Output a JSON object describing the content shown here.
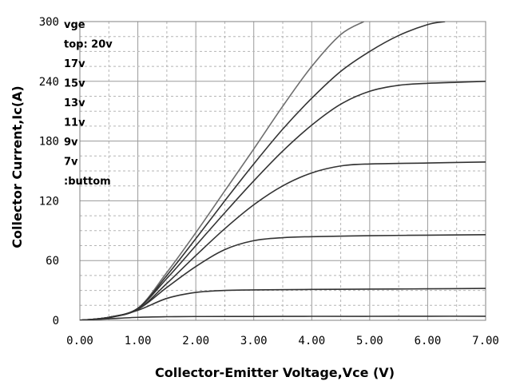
{
  "chart_data": {
    "type": "line",
    "title": "",
    "xlabel": "Collector-Emitter Voltage,Vce (V)",
    "ylabel": "Collector Current,Ic(A)",
    "xlim": [
      0,
      7
    ],
    "ylim": [
      0,
      300
    ],
    "x_ticks": [
      0,
      1,
      2,
      3,
      4,
      5,
      6,
      7
    ],
    "x_tick_labels": [
      "0.00",
      "1.00",
      "2.00",
      "3.00",
      "4.00",
      "5.00",
      "6.00",
      "7.00"
    ],
    "y_ticks": [
      0,
      60,
      120,
      180,
      240,
      300
    ],
    "y_tick_labels": [
      "0",
      "60",
      "120",
      "180",
      "240",
      "300"
    ],
    "grid": true,
    "legend_lines": [
      "vge",
      "top:      20v",
      "17v",
      "15v",
      "13v",
      "11v",
      "9v",
      "7v",
      ":buttom"
    ],
    "legend_placement": "top-left",
    "line_color": "#333333",
    "series": [
      {
        "x": [
          0,
          0.5,
          1.0,
          1.5,
          2.0,
          2.5,
          3.0,
          3.5,
          4.0,
          4.5,
          4.9
        ],
        "y": [
          0,
          3,
          12,
          48,
          88,
          130,
          172,
          215,
          255,
          287,
          300
        ]
      },
      {
        "x": [
          0,
          0.5,
          1.0,
          1.5,
          2.0,
          2.5,
          3.0,
          3.5,
          4.0,
          4.5,
          5.0,
          5.5,
          6.0,
          6.3
        ],
        "y": [
          0,
          3,
          12,
          45,
          82,
          120,
          157,
          192,
          223,
          250,
          270,
          286,
          297,
          300
        ]
      },
      {
        "x": [
          0,
          0.5,
          1.0,
          1.5,
          2.0,
          2.5,
          3.0,
          3.5,
          4.0,
          4.5,
          5.0,
          5.5,
          6.0,
          6.5,
          7.0
        ],
        "y": [
          0,
          3,
          12,
          42,
          75,
          108,
          140,
          170,
          196,
          217,
          230,
          236,
          238,
          239,
          240
        ]
      },
      {
        "x": [
          0,
          0.5,
          1.0,
          1.5,
          2.0,
          2.5,
          3.0,
          3.5,
          4.0,
          4.5,
          5.0,
          6.0,
          7.0
        ],
        "y": [
          0,
          3,
          11,
          37,
          65,
          92,
          116,
          135,
          148,
          155,
          157,
          158,
          159
        ]
      },
      {
        "x": [
          0,
          0.5,
          1.0,
          1.5,
          2.0,
          2.5,
          3.0,
          3.5,
          4.0,
          5.0,
          6.0,
          7.0
        ],
        "y": [
          0,
          3,
          11,
          33,
          54,
          71,
          80,
          83,
          84,
          85,
          85.5,
          86
        ]
      },
      {
        "x": [
          0,
          0.5,
          1.0,
          1.5,
          2.0,
          2.5,
          3.0,
          4.0,
          5.0,
          6.0,
          7.0
        ],
        "y": [
          0,
          2.5,
          10,
          22,
          28,
          30,
          30.5,
          31,
          31.3,
          31.6,
          32
        ]
      },
      {
        "x": [
          0,
          0.5,
          1.0,
          1.5,
          2.0,
          3.0,
          4.0,
          5.0,
          6.0,
          7.0
        ],
        "y": [
          0,
          1.5,
          3,
          3.6,
          3.8,
          3.9,
          4,
          4,
          4.1,
          4.1
        ]
      }
    ]
  }
}
